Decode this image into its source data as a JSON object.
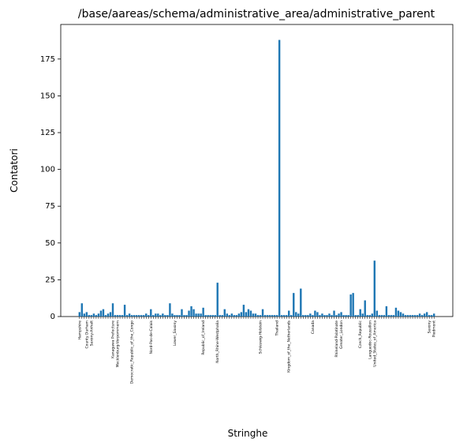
{
  "chart_data": {
    "type": "bar",
    "title": "/base/aareas/schema/administrative_area/administrative_parent",
    "x_label": "Stringhe",
    "y_label": "Contatori",
    "color": "#1f77b4",
    "ylim": [
      0,
      198.5
    ],
    "yticks": [
      0,
      25,
      50,
      75,
      100,
      125,
      150,
      175
    ],
    "categories": [
      "Hampshire",
      null,
      null,
      "County Durham",
      null,
      "Saxony-Anhalt",
      null,
      null,
      null,
      null,
      null,
      null,
      null,
      null,
      "Kanagawa Prefecture",
      null,
      "Mecklenburg-Vorpommern",
      null,
      null,
      null,
      null,
      null,
      "Democratic_Republic_of_the_Congo",
      null,
      null,
      null,
      null,
      null,
      null,
      null,
      "Nord-Pas-de-Calais",
      null,
      null,
      null,
      null,
      null,
      null,
      null,
      null,
      null,
      "Lower_Saxony",
      null,
      null,
      null,
      null,
      null,
      null,
      null,
      null,
      null,
      null,
      null,
      "Republic_of_Ireland",
      null,
      null,
      null,
      null,
      null,
      "North_Rhine-Westphalia",
      null,
      null,
      null,
      null,
      null,
      null,
      null,
      null,
      null,
      null,
      null,
      null,
      null,
      null,
      null,
      null,
      null,
      "Schleswig-Holstein",
      null,
      null,
      null,
      null,
      null,
      null,
      "Thailand",
      null,
      null,
      null,
      null,
      "Kingdom_of_the_Netherlands",
      null,
      null,
      null,
      null,
      null,
      null,
      null,
      null,
      null,
      "Canada",
      null,
      null,
      null,
      null,
      null,
      null,
      null,
      null,
      null,
      "Rhineland-Palatinate",
      null,
      "Greater_London",
      null,
      null,
      null,
      null,
      null,
      null,
      null,
      "Czech_Republic",
      null,
      null,
      null,
      "Languedoc-Roussillon",
      null,
      "United_States_of_America",
      null,
      null,
      null,
      null,
      null,
      null,
      null,
      null,
      null,
      null,
      null,
      null,
      null,
      null,
      null,
      null,
      null,
      null,
      null,
      null,
      null,
      null,
      "Saxony",
      null,
      "Piedmont"
    ],
    "values": [
      3,
      9,
      2,
      3,
      1,
      1,
      2,
      1,
      2,
      4,
      5,
      1,
      2,
      3,
      9,
      1,
      1,
      1,
      1,
      8,
      1,
      2,
      1,
      1,
      1,
      1,
      1,
      1,
      2,
      1,
      5,
      1,
      2,
      2,
      1,
      2,
      1,
      1,
      9,
      2,
      1,
      1,
      1,
      5,
      1,
      1,
      4,
      7,
      5,
      2,
      2,
      2,
      6,
      1,
      1,
      1,
      1,
      1,
      23,
      1,
      1,
      5,
      2,
      1,
      2,
      1,
      1,
      2,
      3,
      8,
      3,
      5,
      4,
      2,
      2,
      1,
      1,
      5,
      1,
      1,
      1,
      1,
      1,
      1,
      188,
      1,
      1,
      1,
      4,
      1,
      16,
      3,
      2,
      19,
      1,
      1,
      1,
      2,
      1,
      4,
      3,
      1,
      2,
      1,
      1,
      2,
      1,
      4,
      1,
      2,
      3,
      1,
      1,
      1,
      15,
      16,
      1,
      1,
      5,
      2,
      11,
      1,
      1,
      2,
      38,
      4,
      1,
      1,
      1,
      7,
      1,
      1,
      1,
      6,
      4,
      3,
      2,
      1,
      1,
      1,
      1,
      1,
      1,
      2,
      1,
      2,
      3,
      1,
      1,
      2
    ]
  }
}
